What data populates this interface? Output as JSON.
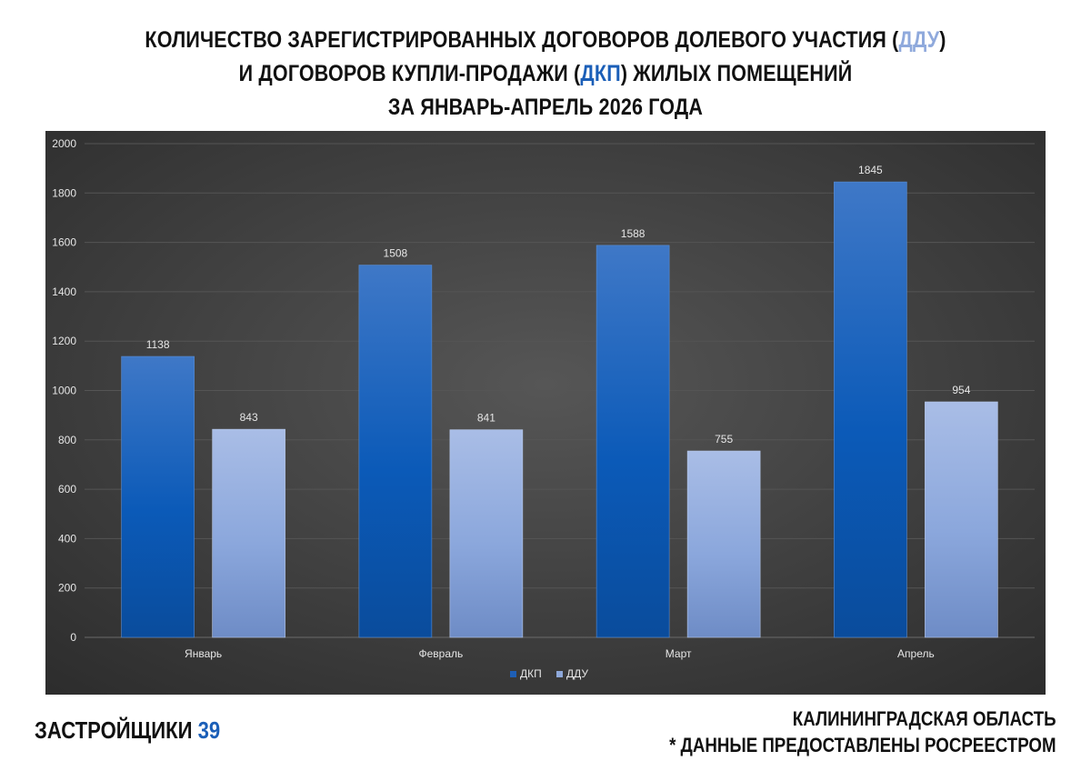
{
  "title": {
    "line1_pre": "КОЛИЧЕСТВО ЗАРЕГИСТРИРОВАННЫХ ДОГОВОРОВ ДОЛЕВОГО УЧАСТИЯ (",
    "line1_hl": "ДДУ",
    "line1_post": ")",
    "line2_pre": "И ДОГОВОРОВ КУПЛИ-ПРОДАЖИ (",
    "line2_hl": "ДКП",
    "line2_post": ") ЖИЛЫХ ПОМЕЩЕНИЙ",
    "line3": "ЗА ЯНВАРЬ-АПРЕЛЬ 2026 ГОДА"
  },
  "chart_data": {
    "type": "bar",
    "categories": [
      "Январь",
      "Февраль",
      "Март",
      "Апрель"
    ],
    "series": [
      {
        "name": "ДКП",
        "values": [
          1138,
          1508,
          1588,
          1845
        ],
        "color": "#1e5fb5"
      },
      {
        "name": "ДДУ",
        "values": [
          843,
          841,
          755,
          954
        ],
        "color": "#8ea8da"
      }
    ],
    "ylim": [
      0,
      2000
    ],
    "yticks": [
      0,
      200,
      400,
      600,
      800,
      1000,
      1200,
      1400,
      1600,
      1800,
      2000
    ],
    "grid": true,
    "legend": "bottom-center",
    "background": "#3e3e3e"
  },
  "footer": {
    "brand_name": "ЗАСТРОЙЩИКИ",
    "brand_number": "39",
    "region": "КАЛИНИНГРАДСКАЯ ОБЛАСТЬ",
    "source_note": "* ДАННЫЕ ПРЕДОСТАВЛЕНЫ РОСРЕЕСТРОМ"
  }
}
